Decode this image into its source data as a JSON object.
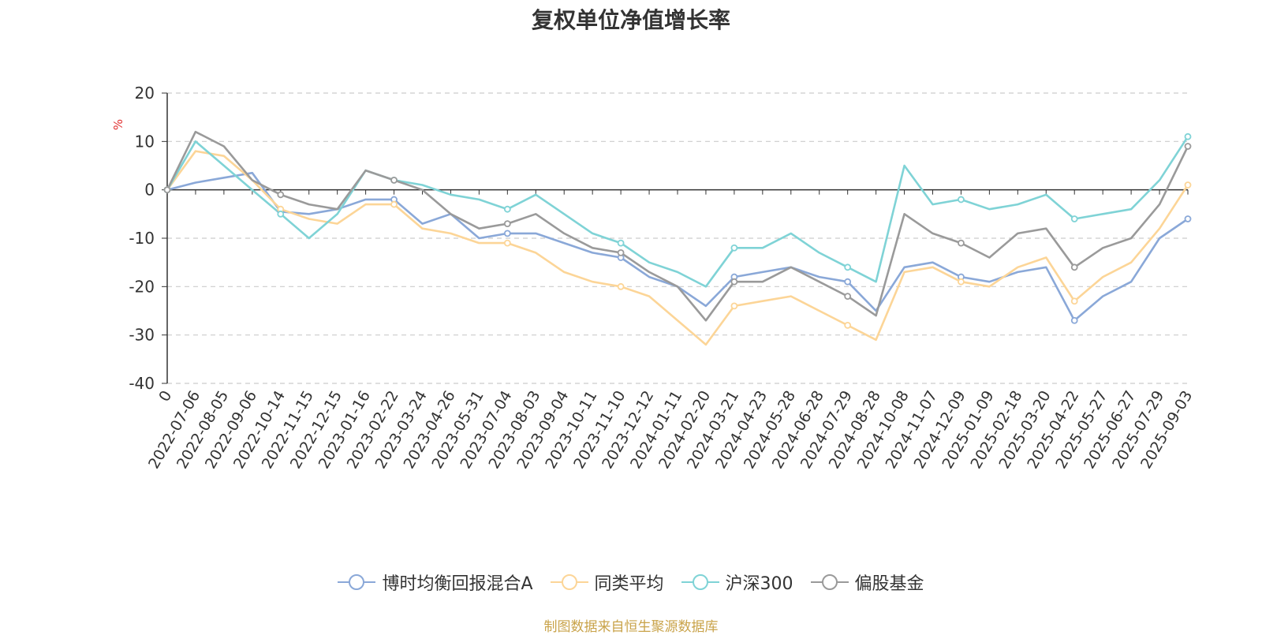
{
  "source_note": "制图数据来自恒生聚源数据库",
  "chart_data": {
    "type": "line",
    "title": "复权单位净值增长率",
    "ylabel": "%",
    "ylim": [
      -40,
      20
    ],
    "yticks": [
      20,
      10,
      0,
      -10,
      -20,
      -30,
      -40
    ],
    "grid": true,
    "legend_position": "bottom",
    "x_ticks": [
      "0",
      "2022-07-06",
      "2022-08-05",
      "2022-09-06",
      "2022-10-14",
      "2022-11-15",
      "2022-12-15",
      "2023-01-16",
      "2023-02-22",
      "2023-03-24",
      "2023-04-26",
      "2023-05-31",
      "2023-07-04",
      "2023-08-03",
      "2023-09-04",
      "2023-10-11",
      "2023-11-10",
      "2023-12-12",
      "2024-01-11",
      "2024-02-20",
      "2024-03-21",
      "2024-04-23",
      "2024-05-28",
      "2024-06-28",
      "2024-07-29",
      "2024-08-28",
      "2024-10-08",
      "2024-11-07",
      "2024-12-09",
      "2025-01-09",
      "2025-02-18",
      "2025-03-20",
      "2025-04-22",
      "2025-05-27",
      "2025-06-27",
      "2025-07-29",
      "2025-09-03"
    ],
    "x": [
      "0",
      "2022-07-06",
      "2022-08-05",
      "2022-09-06",
      "2022-10-14",
      "2022-11-15",
      "2022-12-15",
      "2023-01-16",
      "2023-02-22",
      "2023-03-24",
      "2023-04-26",
      "2023-05-31",
      "2023-07-04",
      "2023-08-03",
      "2023-09-04",
      "2023-10-11",
      "2023-11-10",
      "2023-12-12",
      "2024-01-11",
      "2024-02-20",
      "2024-03-21",
      "2024-04-23",
      "2024-05-28",
      "2024-06-28",
      "2024-07-29",
      "2024-08-28",
      "2024-10-08",
      "2024-11-07",
      "2024-12-09",
      "2025-01-09",
      "2025-02-18",
      "2025-03-20",
      "2025-04-22",
      "2025-05-27",
      "2025-06-27",
      "2025-07-29",
      "2025-09-03"
    ],
    "series": [
      {
        "name": "博时均衡回报混合A",
        "color": "#8aa8d8",
        "values": [
          0,
          1.5,
          2.5,
          3.5,
          -4.5,
          -5,
          -4,
          -2,
          -2,
          -7,
          -5,
          -10,
          -9,
          -9,
          -11,
          -13,
          -14,
          -18,
          -20,
          -24,
          -18,
          -17,
          -16,
          -18,
          -19,
          -25,
          -16,
          -15,
          -18,
          -19,
          -17,
          -16,
          -27,
          -22,
          -19,
          -10,
          -6
        ]
      },
      {
        "name": "同类平均",
        "color": "#fcd597",
        "values": [
          0,
          8,
          7,
          2,
          -4,
          -6,
          -7,
          -3,
          -3,
          -8,
          -9,
          -11,
          -11,
          -13,
          -17,
          -19,
          -20,
          -22,
          -27,
          -32,
          -24,
          -23,
          -22,
          -25,
          -28,
          -31,
          -17,
          -16,
          -19,
          -20,
          -16,
          -14,
          -23,
          -18,
          -15,
          -8,
          1
        ]
      },
      {
        "name": "沪深300",
        "color": "#7fd3d6",
        "values": [
          0,
          10,
          5,
          0,
          -5,
          -10,
          -5,
          4,
          2,
          1,
          -1,
          -2,
          -4,
          -1,
          -5,
          -9,
          -11,
          -15,
          -17,
          -20,
          -12,
          -12,
          -9,
          -13,
          -16,
          -19,
          5,
          -3,
          -2,
          -4,
          -3,
          -1,
          -6,
          -5,
          -4,
          2,
          11
        ]
      },
      {
        "name": "偏股基金",
        "color": "#9a9a9a",
        "values": [
          0,
          12,
          9,
          2,
          -1,
          -3,
          -4,
          4,
          2,
          0,
          -5,
          -8,
          -7,
          -5,
          -9,
          -12,
          -13,
          -17,
          -20,
          -27,
          -19,
          -19,
          -16,
          -19,
          -22,
          -26,
          -5,
          -9,
          -11,
          -14,
          -9,
          -8,
          -16,
          -12,
          -10,
          -3,
          9
        ]
      }
    ]
  }
}
